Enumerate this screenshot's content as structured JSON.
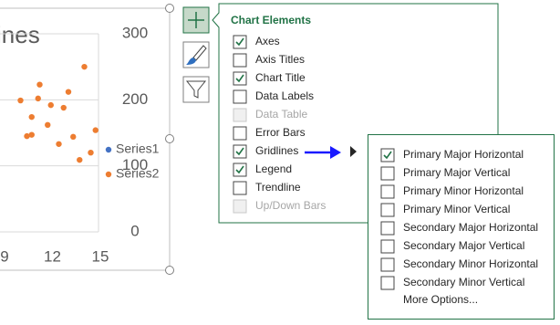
{
  "chart_data": {
    "type": "scatter",
    "title": "ines",
    "series": [
      {
        "name": "Series1",
        "color": "#4472c4",
        "x": [],
        "values": []
      },
      {
        "name": "Series2",
        "color": "#ed7d31",
        "x": [
          14.0,
          11.2,
          13.0,
          10.0,
          11.1,
          11.9,
          12.7,
          10.7,
          11.7,
          10.4,
          10.7,
          13.3,
          14.7,
          12.4,
          14.4,
          13.7
        ],
        "values": [
          250,
          223,
          212,
          199,
          202,
          192,
          188,
          174,
          162,
          145,
          147,
          144,
          154,
          133,
          120,
          109
        ]
      }
    ],
    "xlim": [
      6,
      15
    ],
    "xticks": [
      9,
      12,
      15
    ],
    "ylim": [
      0,
      300
    ],
    "yticks": [
      0,
      100,
      200,
      300
    ],
    "grid": true,
    "legend": "right"
  },
  "chart_elements": {
    "title": "Chart Elements",
    "items": [
      {
        "label": "Axes",
        "checked": true,
        "disabled": false
      },
      {
        "label": "Axis Titles",
        "checked": false,
        "disabled": false
      },
      {
        "label": "Chart Title",
        "checked": true,
        "disabled": false
      },
      {
        "label": "Data Labels",
        "checked": false,
        "disabled": false
      },
      {
        "label": "Data Table",
        "checked": false,
        "disabled": true
      },
      {
        "label": "Error Bars",
        "checked": false,
        "disabled": false
      },
      {
        "label": "Gridlines",
        "checked": true,
        "disabled": false
      },
      {
        "label": "Legend",
        "checked": true,
        "disabled": false
      },
      {
        "label": "Trendline",
        "checked": false,
        "disabled": false
      },
      {
        "label": "Up/Down Bars",
        "checked": false,
        "disabled": true
      }
    ]
  },
  "gridlines_menu": {
    "items": [
      {
        "label": "Primary Major Horizontal",
        "checked": true
      },
      {
        "label": "Primary Major Vertical",
        "checked": false
      },
      {
        "label": "Primary Minor Horizontal",
        "checked": false
      },
      {
        "label": "Primary Minor Vertical",
        "checked": false
      },
      {
        "label": "Secondary Major Horizontal",
        "checked": false
      },
      {
        "label": "Secondary Major Vertical",
        "checked": false
      },
      {
        "label": "Secondary Minor Horizontal",
        "checked": false
      },
      {
        "label": "Secondary Minor Vertical",
        "checked": false
      }
    ],
    "more": "More Options..."
  }
}
